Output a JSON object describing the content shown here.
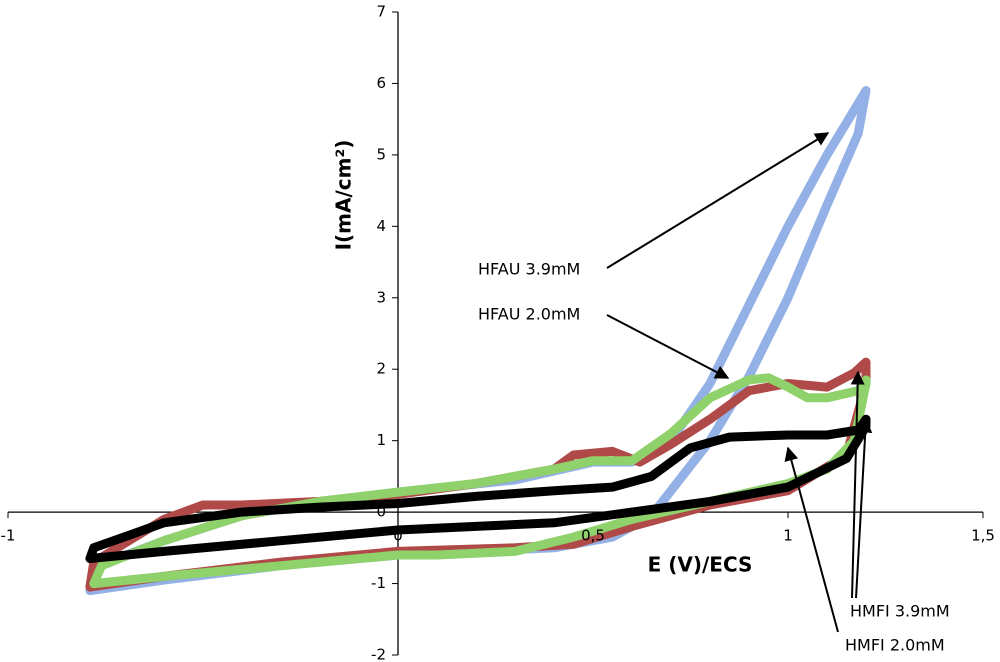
{
  "chart_data": {
    "type": "line",
    "xlabel": "E (V)/ECS",
    "ylabel": "I(mA/cm²)",
    "xlim": [
      -1,
      1.5
    ],
    "ylim": [
      -2,
      7
    ],
    "xticks": [
      -1,
      0,
      {
        "value": 0.5,
        "label": "0,5"
      },
      1,
      {
        "value": 1.5,
        "label": "1,5"
      }
    ],
    "yticks": [
      -2,
      -1,
      0,
      1,
      2,
      3,
      4,
      5,
      6,
      7
    ],
    "series": [
      {
        "name": "HFAU 3.9mM",
        "color": "#93b1e6",
        "x": [
          0,
          0.3,
          0.5,
          0.6,
          0.7,
          0.8,
          0.9,
          1.0,
          1.1,
          1.2,
          1.18,
          1.1,
          1.0,
          0.9,
          0.8,
          0.7,
          0.65,
          0.55,
          0.4,
          0.2,
          0,
          -0.3,
          -0.6,
          -0.79,
          -0.77,
          -0.6,
          -0.4,
          -0.2,
          0
        ],
        "values": [
          0.28,
          0.45,
          0.7,
          0.7,
          1.0,
          1.8,
          2.9,
          4.0,
          5.0,
          5.9,
          5.3,
          4.3,
          3.0,
          1.9,
          1.0,
          0.3,
          -0.05,
          -0.35,
          -0.5,
          -0.55,
          -0.6,
          -0.75,
          -0.95,
          -1.1,
          -0.75,
          -0.4,
          -0.05,
          0.15,
          0.28
        ]
      },
      {
        "name": "HMFI 3.9mM",
        "color": "#b04a48",
        "x": [
          0,
          0.2,
          0.4,
          0.45,
          0.55,
          0.62,
          0.7,
          0.8,
          0.9,
          1.0,
          1.1,
          1.17,
          1.2,
          1.2,
          1.15,
          1.0,
          0.8,
          0.6,
          0.45,
          0.3,
          0,
          -0.3,
          -0.6,
          -0.79,
          -0.78,
          -0.6,
          -0.5,
          -0.4,
          -0.2,
          0
        ],
        "values": [
          0.25,
          0.4,
          0.6,
          0.8,
          0.85,
          0.7,
          0.95,
          1.3,
          1.7,
          1.8,
          1.75,
          1.95,
          2.1,
          1.8,
          0.8,
          0.3,
          0.1,
          -0.2,
          -0.45,
          -0.5,
          -0.55,
          -0.7,
          -0.9,
          -1.05,
          -0.7,
          -0.1,
          0.1,
          0.1,
          0.15,
          0.25
        ]
      },
      {
        "name": "HFAU 2.0mM",
        "color": "#8fd16a",
        "x": [
          0,
          0.2,
          0.4,
          0.5,
          0.6,
          0.7,
          0.8,
          0.9,
          0.95,
          1.0,
          1.05,
          1.1,
          1.18,
          1.2,
          1.2,
          1.17,
          1.1,
          1.0,
          0.8,
          0.6,
          0.45,
          0.3,
          0.1,
          0,
          -0.3,
          -0.6,
          -0.78,
          -0.76,
          -0.6,
          -0.4,
          -0.2,
          0
        ],
        "values": [
          0.28,
          0.4,
          0.6,
          0.72,
          0.72,
          1.1,
          1.6,
          1.85,
          1.88,
          1.75,
          1.6,
          1.6,
          1.7,
          1.85,
          1.8,
          1.0,
          0.6,
          0.4,
          0.15,
          -0.1,
          -0.35,
          -0.55,
          -0.6,
          -0.6,
          -0.75,
          -0.9,
          -1.0,
          -0.75,
          -0.4,
          -0.05,
          0.15,
          0.28
        ]
      },
      {
        "name": "HMFI 2.0mM",
        "color": "#000000",
        "x": [
          0,
          0.2,
          0.4,
          0.55,
          0.65,
          0.75,
          0.85,
          1.0,
          1.1,
          1.18,
          1.2,
          1.2,
          1.15,
          1.0,
          0.8,
          0.6,
          0.4,
          0.2,
          0,
          -0.3,
          -0.6,
          -0.79,
          -0.78,
          -0.6,
          -0.4,
          -0.2,
          0
        ],
        "values": [
          0.12,
          0.22,
          0.3,
          0.35,
          0.5,
          0.9,
          1.05,
          1.08,
          1.08,
          1.15,
          1.3,
          1.2,
          0.75,
          0.35,
          0.15,
          0.0,
          -0.15,
          -0.2,
          -0.25,
          -0.4,
          -0.55,
          -0.65,
          -0.5,
          -0.15,
          0.0,
          0.07,
          0.12
        ]
      }
    ]
  }
}
